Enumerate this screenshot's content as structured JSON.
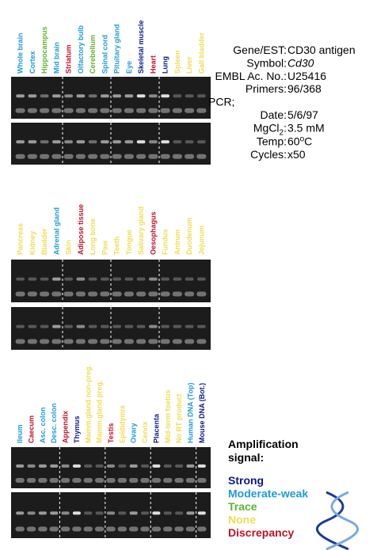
{
  "panels": [
    {
      "lanes": [
        {
          "label": "Whole brain",
          "signal": 1
        },
        {
          "label": "Cortex",
          "signal": 1
        },
        {
          "label": "Hippocampus",
          "signal": 2
        },
        {
          "label": "Mid brain",
          "signal": 1
        },
        {
          "label": "Striatum",
          "signal": 4
        },
        {
          "label": "Olfactory bulb",
          "signal": 1
        },
        {
          "label": "Cerebellum",
          "signal": 2
        },
        {
          "label": "Spinal cord",
          "signal": 1
        },
        {
          "label": "Pituitary gland",
          "signal": 1
        },
        {
          "label": "Eye",
          "signal": 1
        },
        {
          "label": "Skeletal muscle",
          "signal": 0
        },
        {
          "label": "Heart",
          "signal": 4
        },
        {
          "label": "Lung",
          "signal": 0
        },
        {
          "label": "Spleen",
          "signal": 3
        },
        {
          "label": "Liver",
          "signal": 3
        },
        {
          "label": "Gall bladder",
          "signal": 3
        }
      ]
    },
    {
      "lanes": [
        {
          "label": "Pancreas",
          "signal": 3
        },
        {
          "label": "Kidney",
          "signal": 3
        },
        {
          "label": "Bladder",
          "signal": 3
        },
        {
          "label": "Adrenal gland",
          "signal": 1
        },
        {
          "label": "Skin",
          "signal": 3
        },
        {
          "label": "Adipose tissue",
          "signal": 4
        },
        {
          "label": "Long bone",
          "signal": 3
        },
        {
          "label": "Paw",
          "signal": 3
        },
        {
          "label": "Teeth",
          "signal": 3
        },
        {
          "label": "Tongue",
          "signal": 3
        },
        {
          "label": "Salivary gland",
          "signal": 3
        },
        {
          "label": "Oesophagus",
          "signal": 4
        },
        {
          "label": "Fundus",
          "signal": 3
        },
        {
          "label": "Antrum",
          "signal": 3
        },
        {
          "label": "Duodenum",
          "signal": 3
        },
        {
          "label": "Jejunum",
          "signal": 3
        }
      ]
    },
    {
      "lanes": [
        {
          "label": "Ileum",
          "signal": 1
        },
        {
          "label": "Caecum",
          "signal": 4
        },
        {
          "label": "Asc. colon",
          "signal": 1
        },
        {
          "label": "Desc. colon",
          "signal": 1
        },
        {
          "label": "Appendix",
          "signal": 4
        },
        {
          "label": "Thymus",
          "signal": 0
        },
        {
          "label": "Mamm.gland non-preg.",
          "signal": 3
        },
        {
          "label": "Mamm.gland preg.",
          "signal": 3
        },
        {
          "label": "Testis",
          "signal": 4
        },
        {
          "label": "Epididymis",
          "signal": 3
        },
        {
          "label": "Ovary",
          "signal": 1
        },
        {
          "label": "Cervix",
          "signal": 3
        },
        {
          "label": "Placenta",
          "signal": 0
        },
        {
          "label": "Mid-term foetus",
          "signal": 3
        },
        {
          "label": "No RT product",
          "signal": 3
        },
        {
          "label": "Human DNA (Top)",
          "signal": 1
        },
        {
          "label": "Mouse DNA (Bot.)",
          "signal": 0
        }
      ]
    }
  ],
  "info": [
    {
      "key": "Gene/EST:",
      "value": "CD30 antigen"
    },
    {
      "key": "Symbol:",
      "value": "Cd30",
      "italic": true
    },
    {
      "key": "EMBL Ac. No.:",
      "value": "U25416"
    },
    {
      "key": "Primers:",
      "value": "96/368"
    },
    {
      "key": "PCR;",
      "heading": true
    },
    {
      "key": "Date:",
      "value": "5/6/97"
    },
    {
      "key": "MgCl",
      "key_sub": "2",
      "key_end": ":",
      "value": "3.5 mM"
    },
    {
      "key": "Temp:",
      "value": "60",
      "value_sup": "o",
      "value_end": "C"
    },
    {
      "key": "Cycles:",
      "value": "x50"
    }
  ],
  "legend": {
    "title": [
      "Amplification",
      "signal:"
    ],
    "levels": [
      {
        "label": "Strong",
        "color": "#0b1a8a"
      },
      {
        "label": "Moderate-weak",
        "color": "#1e9bd7"
      },
      {
        "label": "Trace",
        "color": "#5fb52d"
      },
      {
        "label": "None",
        "color": "#f0dc50"
      },
      {
        "label": "Discrepancy",
        "color": "#c0102a"
      }
    ]
  }
}
